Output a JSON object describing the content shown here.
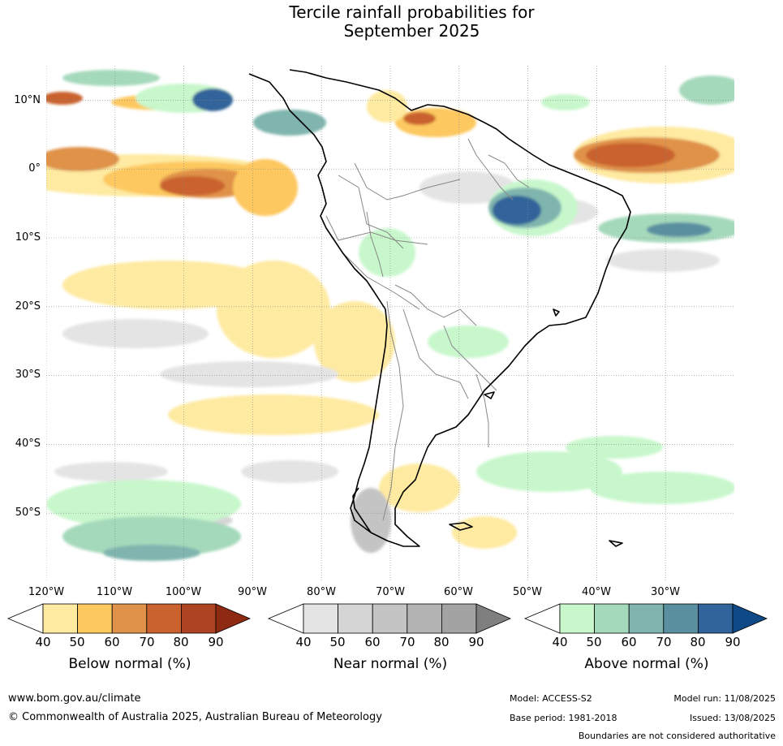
{
  "title": {
    "line1": "Tercile rainfall probabilities for",
    "line2": "September 2025"
  },
  "map": {
    "latitude_labels": [
      "10°N",
      "0°",
      "10°S",
      "20°S",
      "30°S",
      "40°S",
      "50°S"
    ],
    "longitude_labels": [
      "120°W",
      "110°W",
      "100°W",
      "90°W",
      "80°W",
      "70°W",
      "60°W",
      "50°W",
      "40°W",
      "30°W"
    ],
    "colors": {
      "ocean_background": "#ffffff",
      "coastline": "#000000",
      "borders": "#888888",
      "gridline": "#888888"
    }
  },
  "colorbars": [
    {
      "label": "Below normal (%)",
      "ticks": [
        "40",
        "50",
        "60",
        "70",
        "80",
        "90"
      ],
      "colors": [
        "#ffffff",
        "#feeaa0",
        "#fdc85e",
        "#e0924a",
        "#c9622e",
        "#ae4322",
        "#8f2a12"
      ]
    },
    {
      "label": "Near normal (%)",
      "ticks": [
        "40",
        "50",
        "60",
        "70",
        "80",
        "90"
      ],
      "colors": [
        "#ffffff",
        "#e4e4e4",
        "#d5d5d5",
        "#c4c4c4",
        "#b3b3b3",
        "#a3a3a3",
        "#7f7f7f"
      ]
    },
    {
      "label": "Above normal (%)",
      "ticks": [
        "40",
        "50",
        "60",
        "70",
        "80",
        "90"
      ],
      "colors": [
        "#ffffff",
        "#c8f7cc",
        "#a5d9bb",
        "#7fb5ae",
        "#5a8fa0",
        "#30649a",
        "#0f4a86"
      ]
    }
  ],
  "footer": {
    "website": "www.bom.gov.au/climate",
    "copyright": "© Commonwealth of Australia 2025, Australian Bureau of Meteorology",
    "model": "Model: ACCESS-S2",
    "base_period": "Base period: 1981-2018",
    "model_run": "Model run: 11/08/2025",
    "issued": "Issued: 13/08/2025",
    "disclaimer": "Boundaries are not considered authoritative"
  }
}
